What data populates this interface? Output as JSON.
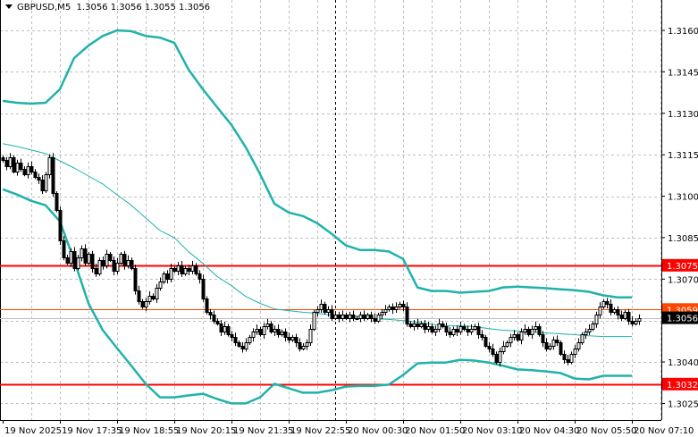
{
  "header": {
    "symbol": "GBPUSD,M5",
    "ohlc": "1.3056 1.3056 1.3055 1.3056"
  },
  "colors": {
    "bull_body": "#ffffff",
    "bear_body": "#000000",
    "bands": "#20b2aa",
    "ma": "#20b2aa",
    "level_line": "#ff0000",
    "ask_line": "#ff4500",
    "bid_line": "#c0c0c0",
    "grid": "#c0c0c0"
  },
  "chart_data": {
    "type": "candlestick",
    "title": "GBPUSD,M5",
    "timeframe_minutes": 5,
    "ylim": [
      1.3019,
      1.3171
    ],
    "grid": true,
    "y_ticks": [
      "1.3160",
      "1.3145",
      "1.3130",
      "1.3115",
      "1.3100",
      "1.3085",
      "1.3070",
      "1.3040",
      "1.3025"
    ],
    "x_ticks": [
      "19 Nov 2025",
      "19 Nov 17:35",
      "19 Nov 18:55",
      "19 Nov 20:15",
      "19 Nov 21:35",
      "19 Nov 22:55",
      "20 Nov 00:30",
      "20 Nov 01:50",
      "20 Nov 03:10",
      "20 Nov 04:30",
      "20 Nov 05:50",
      "20 Nov 07:10"
    ],
    "close": [
      1.3113,
      1.3111,
      1.3114,
      1.3109,
      1.3112,
      1.311,
      1.3108,
      1.3111,
      1.3109,
      1.3107,
      1.3106,
      1.3102,
      1.3108,
      1.3114,
      1.3101,
      1.3095,
      1.3084,
      1.3078,
      1.3076,
      1.308,
      1.3074,
      1.3078,
      1.3081,
      1.3076,
      1.3079,
      1.3074,
      1.3072,
      1.3077,
      1.3075,
      1.3079,
      1.3077,
      1.3073,
      1.3076,
      1.3079,
      1.3075,
      1.3077,
      1.3074,
      1.3066,
      1.3062,
      1.306,
      1.3062,
      1.3064,
      1.3063,
      1.3067,
      1.3069,
      1.3072,
      1.307,
      1.3074,
      1.3073,
      1.3075,
      1.3072,
      1.3074,
      1.3073,
      1.3075,
      1.3072,
      1.307,
      1.3063,
      1.3058,
      1.3057,
      1.3055,
      1.3054,
      1.3051,
      1.3053,
      1.305,
      1.3049,
      1.3047,
      1.3046,
      1.3045,
      1.3047,
      1.3049,
      1.3051,
      1.3052,
      1.305,
      1.3053,
      1.3054,
      1.3051,
      1.3052,
      1.305,
      1.3051,
      1.3049,
      1.3048,
      1.3049,
      1.3047,
      1.3045,
      1.3046,
      1.3047,
      1.3052,
      1.3058,
      1.3059,
      1.3061,
      1.3058,
      1.3059,
      1.3056,
      1.3057,
      1.3056,
      1.3057,
      1.3056,
      1.3057,
      1.3056,
      1.3056,
      1.3057,
      1.3056,
      1.3057,
      1.3056,
      1.3055,
      1.3057,
      1.3058,
      1.3059,
      1.306,
      1.3059,
      1.306,
      1.3061,
      1.306,
      1.3054,
      1.3053,
      1.3054,
      1.3053,
      1.3054,
      1.3052,
      1.3053,
      1.3051,
      1.3052,
      1.3054,
      1.3053,
      1.3051,
      1.305,
      1.3052,
      1.3051,
      1.3053,
      1.3052,
      1.3051,
      1.3052,
      1.3053,
      1.305,
      1.3049,
      1.3046,
      1.3045,
      1.3043,
      1.304,
      1.3044,
      1.3046,
      1.3047,
      1.3049,
      1.305,
      1.3048,
      1.3051,
      1.3052,
      1.305,
      1.3052,
      1.3053,
      1.305,
      1.3047,
      1.3045,
      1.3046,
      1.3048,
      1.3047,
      1.3043,
      1.3041,
      1.304,
      1.3043,
      1.3045,
      1.3047,
      1.305,
      1.3051,
      1.3052,
      1.3054,
      1.3057,
      1.306,
      1.3062,
      1.3061,
      1.3058,
      1.3059,
      1.3057,
      1.3056,
      1.3058,
      1.3055,
      1.3054,
      1.3055,
      1.3056
    ],
    "indicator_sample_every_bars": 4,
    "upper_band": [
      1.31345,
      1.31338,
      1.31335,
      1.31338,
      1.31387,
      1.315,
      1.31545,
      1.3158,
      1.316,
      1.31597,
      1.3158,
      1.31574,
      1.31555,
      1.31458,
      1.31387,
      1.31322,
      1.31258,
      1.31177,
      1.3108,
      1.30973,
      1.30941,
      1.30928,
      1.30902,
      1.30864,
      1.30822,
      1.30805,
      1.30805,
      1.308,
      1.30773,
      1.3067,
      1.30657,
      1.30657,
      1.30651,
      1.30654,
      1.30657,
      1.3067,
      1.30673,
      1.3067,
      1.30667,
      1.30663,
      1.3066,
      1.30654,
      1.30641,
      1.30634,
      1.30634
    ],
    "lower_band": [
      1.31025,
      1.31006,
      1.30983,
      1.30967,
      1.30909,
      1.30767,
      1.30612,
      1.30515,
      1.3045,
      1.30386,
      1.30321,
      1.30272,
      1.30272,
      1.30279,
      1.30285,
      1.30266,
      1.3025,
      1.3025,
      1.30272,
      1.30321,
      1.30305,
      1.30289,
      1.30289,
      1.30298,
      1.30311,
      1.30314,
      1.30314,
      1.30318,
      1.30353,
      1.30395,
      1.30398,
      1.30398,
      1.30408,
      1.30405,
      1.30398,
      1.30386,
      1.30373,
      1.3037,
      1.30366,
      1.3036,
      1.3034,
      1.30337,
      1.3035,
      1.3035,
      1.3035
    ],
    "moving_average": [
      1.3119,
      1.3118,
      1.31167,
      1.31154,
      1.31128,
      1.31102,
      1.31073,
      1.31044,
      1.31005,
      1.30967,
      1.30921,
      1.30876,
      1.3085,
      1.30799,
      1.30757,
      1.30709,
      1.30676,
      1.30637,
      1.30612,
      1.30592,
      1.30586,
      1.3058,
      1.30576,
      1.3057,
      1.30567,
      1.30563,
      1.30557,
      1.30554,
      1.3055,
      1.30544,
      1.30537,
      1.30531,
      1.30531,
      1.30528,
      1.30521,
      1.30515,
      1.30512,
      1.30508,
      1.30505,
      1.30502,
      1.30499,
      1.30495,
      1.30492,
      1.30492,
      1.30492
    ],
    "period_separator": "20 Nov 00:00",
    "levels": [
      {
        "label": "1.3075",
        "price": 1.3075,
        "color": "#ff0000",
        "badge_text": "#ffffff"
      },
      {
        "label": "1.3032",
        "price": 1.3032,
        "color": "#ff0000",
        "badge_text": "#ffffff"
      },
      {
        "label": "1.3059",
        "price": 1.3059,
        "color": "#ff4500",
        "badge_text": "#ffffff",
        "kind": "ask"
      },
      {
        "label": "1.3056",
        "price": 1.3056,
        "color": "#000000",
        "line": "#c0c0c0",
        "badge_text": "#ffffff",
        "kind": "bid"
      }
    ]
  }
}
